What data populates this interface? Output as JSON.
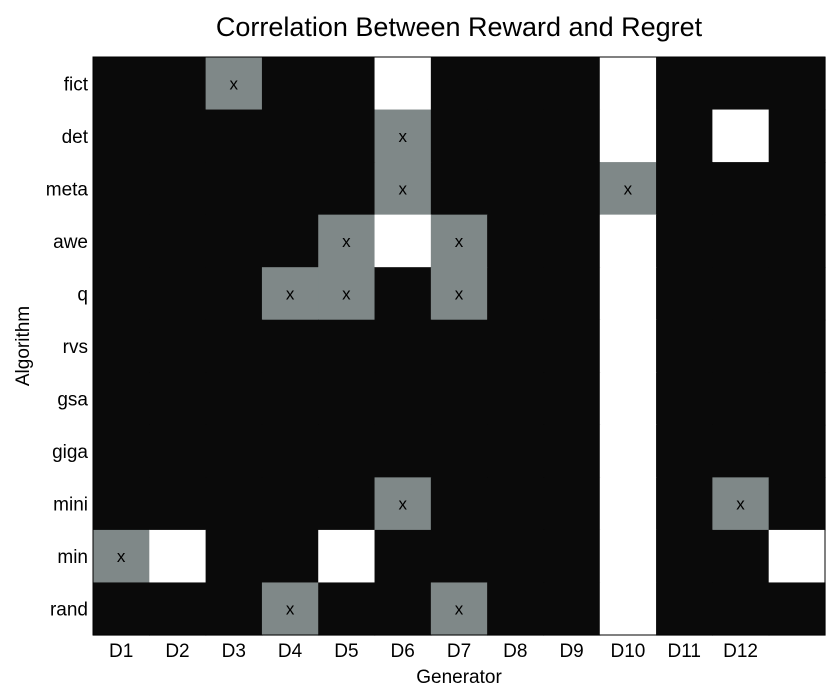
{
  "chart_data": {
    "type": "heatmap",
    "title": "Correlation Between Reward and Regret",
    "xlabel": "Generator",
    "ylabel": "Algorithm",
    "x_tick_labels": [
      "D1",
      "D2",
      "D3",
      "D4",
      "D5",
      "D6",
      "D7",
      "D8",
      "D9",
      "D10",
      "D11",
      "D12"
    ],
    "column_count": 13,
    "rows": [
      "fict",
      "det",
      "meta",
      "awe",
      "q",
      "rvs",
      "gsa",
      "giga",
      "mini",
      "min",
      "rand"
    ],
    "legend": "none",
    "grid": false,
    "levels": [
      0,
      1,
      2
    ],
    "level_colors": {
      "0": "#0a0a0a",
      "1": "#7f8888",
      "2": "#ffffff"
    },
    "marker_text": "x",
    "cells": [
      [
        0,
        0,
        1,
        0,
        0,
        2,
        0,
        0,
        0,
        2,
        0,
        0,
        0
      ],
      [
        0,
        0,
        0,
        0,
        0,
        1,
        0,
        0,
        0,
        2,
        0,
        2,
        0
      ],
      [
        0,
        0,
        0,
        0,
        0,
        1,
        0,
        0,
        0,
        1,
        0,
        0,
        0
      ],
      [
        0,
        0,
        0,
        0,
        1,
        2,
        1,
        0,
        0,
        2,
        0,
        0,
        0
      ],
      [
        0,
        0,
        0,
        1,
        1,
        0,
        1,
        0,
        0,
        2,
        0,
        0,
        0
      ],
      [
        0,
        0,
        0,
        0,
        0,
        0,
        0,
        0,
        0,
        2,
        0,
        0,
        0
      ],
      [
        0,
        0,
        0,
        0,
        0,
        0,
        0,
        0,
        0,
        2,
        0,
        0,
        0
      ],
      [
        0,
        0,
        0,
        0,
        0,
        0,
        0,
        0,
        0,
        2,
        0,
        0,
        0
      ],
      [
        0,
        0,
        0,
        0,
        0,
        1,
        0,
        0,
        0,
        2,
        0,
        1,
        0
      ],
      [
        1,
        2,
        0,
        0,
        2,
        0,
        0,
        0,
        0,
        2,
        0,
        0,
        2
      ],
      [
        0,
        0,
        0,
        1,
        0,
        0,
        1,
        0,
        0,
        2,
        0,
        0,
        0
      ]
    ]
  }
}
